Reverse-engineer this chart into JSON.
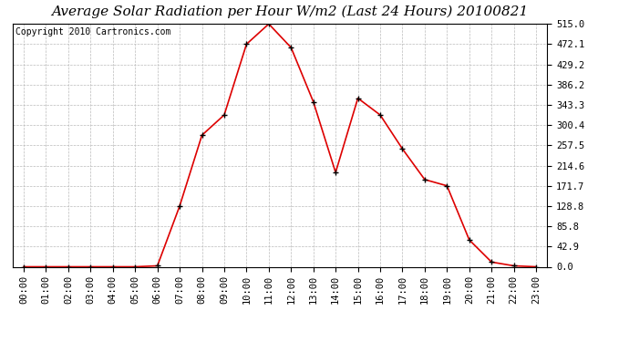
{
  "title": "Average Solar Radiation per Hour W/m2 (Last 24 Hours) 20100821",
  "copyright": "Copyright 2010 Cartronics.com",
  "x_labels": [
    "00:00",
    "01:00",
    "02:00",
    "03:00",
    "04:00",
    "05:00",
    "06:00",
    "07:00",
    "08:00",
    "09:00",
    "10:00",
    "11:00",
    "12:00",
    "13:00",
    "14:00",
    "15:00",
    "16:00",
    "17:00",
    "18:00",
    "19:00",
    "20:00",
    "21:00",
    "22:00",
    "23:00"
  ],
  "y_values": [
    0.0,
    0.0,
    0.0,
    0.0,
    0.0,
    0.0,
    2.0,
    128.8,
    279.0,
    322.0,
    472.1,
    515.0,
    465.0,
    350.0,
    200.0,
    357.5,
    322.0,
    250.0,
    185.0,
    171.7,
    57.0,
    10.0,
    2.0,
    0.0
  ],
  "line_color": "#dd0000",
  "marker": "+",
  "marker_size": 5,
  "marker_color": "#000000",
  "bg_color": "#ffffff",
  "plot_bg_color": "#ffffff",
  "grid_color": "#bbbbbb",
  "y_ticks": [
    0.0,
    42.9,
    85.8,
    128.8,
    171.7,
    214.6,
    257.5,
    300.4,
    343.3,
    386.2,
    429.2,
    472.1,
    515.0
  ],
  "ylim": [
    0.0,
    515.0
  ],
  "title_fontsize": 11,
  "copyright_fontsize": 7,
  "tick_fontsize": 7.5,
  "border_color": "#000000"
}
